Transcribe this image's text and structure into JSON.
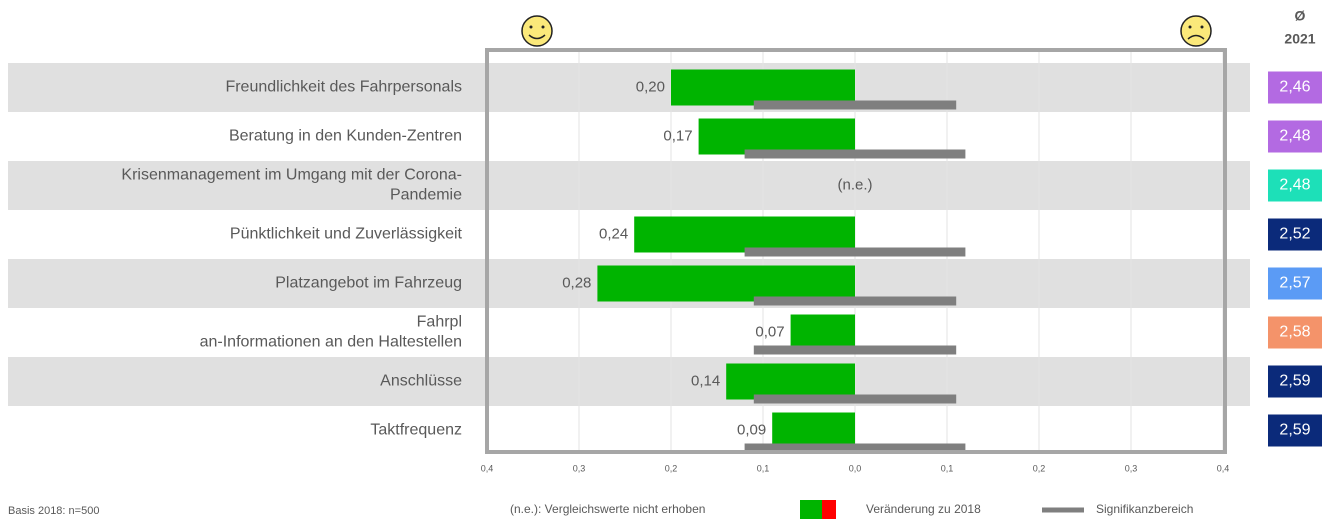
{
  "chart_data": {
    "type": "diverging-bar",
    "categories": [
      "Freundlichkeit des Fahrpersonals",
      "Beratung in den Kunden-Zentren",
      "Krisenmanagement im Umgang mit der Corona-Pandemie",
      "Pünktlichkeit und Zuverlässigkeit",
      "Platzangebot im Fahrzeug",
      "Fahrplan-Informationen an den Haltestellen",
      "Anschlüsse",
      "Taktfrequenz"
    ],
    "values": [
      0.2,
      0.17,
      null,
      0.24,
      0.28,
      0.07,
      0.14,
      0.09
    ],
    "value_labels": [
      "0,20",
      "0,17",
      "(n.e.)",
      "0,24",
      "0,28",
      "0,07",
      "0,14",
      "0,09"
    ],
    "color": "#00b400",
    "significance": [
      0.11,
      0.12,
      null,
      0.12,
      0.11,
      0.11,
      0.11,
      0.12
    ],
    "significance_color": "#7f7f7f",
    "xlim": [
      0.4,
      -0.4
    ],
    "xticks": [
      {
        "value": 0.4,
        "label": "0,4"
      },
      {
        "value": 0.3,
        "label": "0,3"
      },
      {
        "value": 0.2,
        "label": "0,2"
      },
      {
        "value": 0.1,
        "label": "0,1"
      },
      {
        "value": 0,
        "label": "0,0"
      },
      {
        "value": -0.1,
        "label": "0,1"
      },
      {
        "value": -0.2,
        "label": "0,2"
      },
      {
        "value": -0.3,
        "label": "0,3"
      },
      {
        "value": -0.4,
        "label": "0,4"
      }
    ],
    "grid": true,
    "score_header": [
      "Ø",
      "2021"
    ],
    "scores": [
      2.46,
      2.48,
      2.48,
      2.52,
      2.57,
      2.58,
      2.59,
      2.59
    ],
    "score_labels": [
      "2,46",
      "2,48",
      "2,48",
      "2,52",
      "2,57",
      "2,58",
      "2,59",
      "2,59"
    ],
    "score_colors": [
      "#b36ae2",
      "#b36ae2",
      "#1de0b8",
      "#0b2a7a",
      "#5b9bf5",
      "#f4936a",
      "#0b2a7a",
      "#0b2a7a"
    ],
    "legend": [
      "(n.e.): Vergleichswerte nicht erhoben",
      "Veränderung zu 2018",
      "Signifikanzbereich"
    ],
    "footnote": "Basis 2018: n=500"
  }
}
